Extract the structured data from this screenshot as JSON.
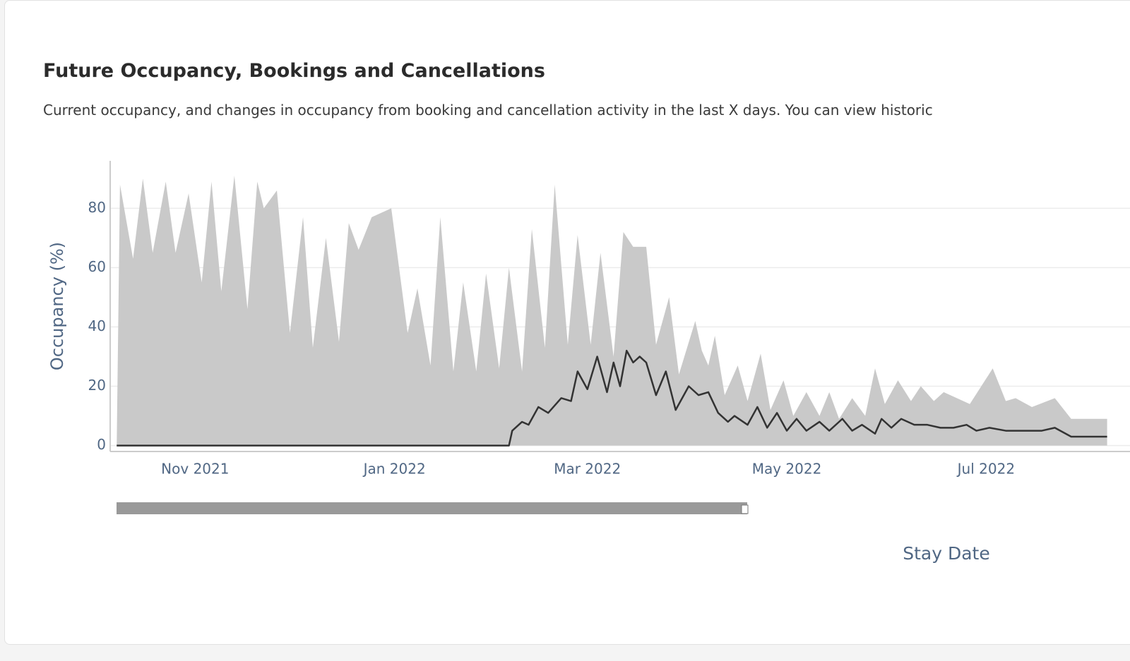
{
  "header": {
    "title": "Future Occupancy, Bookings and Cancellations",
    "subtitle": "Current occupancy, and changes in occupancy from booking and cancellation activity in the last X days. You can view historic"
  },
  "chart_data": {
    "type": "area-line",
    "x_label": "Stay Date",
    "y_label": "Occupancy (%)",
    "xlim": [
      -2,
      310
    ],
    "ylim": [
      -2,
      96
    ],
    "xticks": [
      {
        "value": 24,
        "label": "Nov 2021"
      },
      {
        "value": 85,
        "label": "Jan 2022"
      },
      {
        "value": 144,
        "label": "Mar 2022"
      },
      {
        "value": 205,
        "label": "May 2022"
      },
      {
        "value": 266,
        "label": "Jul 2022"
      }
    ],
    "yticks": [
      0,
      20,
      40,
      60,
      80
    ],
    "grid": true,
    "series": [
      {
        "color": "#c9c9c9",
        "style": "area",
        "x": [
          0,
          1,
          5,
          8,
          11,
          15,
          18,
          22,
          26,
          29,
          32,
          36,
          40,
          43,
          45,
          49,
          53,
          57,
          60,
          64,
          68,
          71,
          74,
          78,
          84,
          89,
          92,
          96,
          99,
          103,
          106,
          110,
          113,
          117,
          120,
          124,
          127,
          131,
          134,
          138,
          141,
          145,
          148,
          152,
          155,
          158,
          162,
          165,
          169,
          172,
          177,
          179,
          181,
          183,
          186,
          190,
          193,
          197,
          200,
          204,
          207,
          211,
          215,
          218,
          221,
          225,
          229,
          232,
          235,
          239,
          243,
          246,
          250,
          253,
          261,
          268,
          272,
          275,
          280,
          287,
          292,
          303
        ],
        "values": [
          0,
          88,
          63,
          90,
          65,
          89,
          65,
          85,
          55,
          89,
          52,
          91,
          46,
          89,
          80,
          86,
          38,
          77,
          33,
          70,
          35,
          75,
          66,
          77,
          80,
          38,
          53,
          27,
          77,
          25,
          55,
          25,
          58,
          26,
          60,
          25,
          73,
          33,
          88,
          34,
          71,
          34,
          65,
          30,
          72,
          67,
          67,
          34,
          50,
          24,
          42,
          32,
          27,
          37,
          17,
          27,
          15,
          31,
          12,
          22,
          10,
          18,
          10,
          18,
          9,
          16,
          10,
          26,
          14,
          22,
          15,
          20,
          15,
          18,
          14,
          26,
          15,
          16,
          13,
          16,
          9,
          9
        ]
      },
      {
        "color": "#333333",
        "style": "line",
        "x": [
          0,
          120,
          121,
          124,
          126,
          129,
          132,
          136,
          139,
          141,
          144,
          147,
          150,
          152,
          154,
          156,
          158,
          160,
          162,
          165,
          168,
          171,
          175,
          178,
          181,
          184,
          187,
          189,
          193,
          196,
          199,
          202,
          205,
          208,
          211,
          215,
          218,
          222,
          225,
          228,
          232,
          234,
          237,
          240,
          244,
          248,
          252,
          256,
          260,
          263,
          267,
          272,
          278,
          283,
          287,
          292,
          297,
          303
        ],
        "values": [
          0,
          0,
          5,
          8,
          7,
          13,
          11,
          16,
          15,
          25,
          19,
          30,
          18,
          28,
          20,
          32,
          28,
          30,
          28,
          17,
          25,
          12,
          20,
          17,
          18,
          11,
          8,
          10,
          7,
          13,
          6,
          11,
          5,
          9,
          5,
          8,
          5,
          9,
          5,
          7,
          4,
          9,
          6,
          9,
          7,
          7,
          6,
          6,
          7,
          5,
          6,
          5,
          5,
          5,
          6,
          3,
          3,
          3
        ]
      }
    ]
  }
}
